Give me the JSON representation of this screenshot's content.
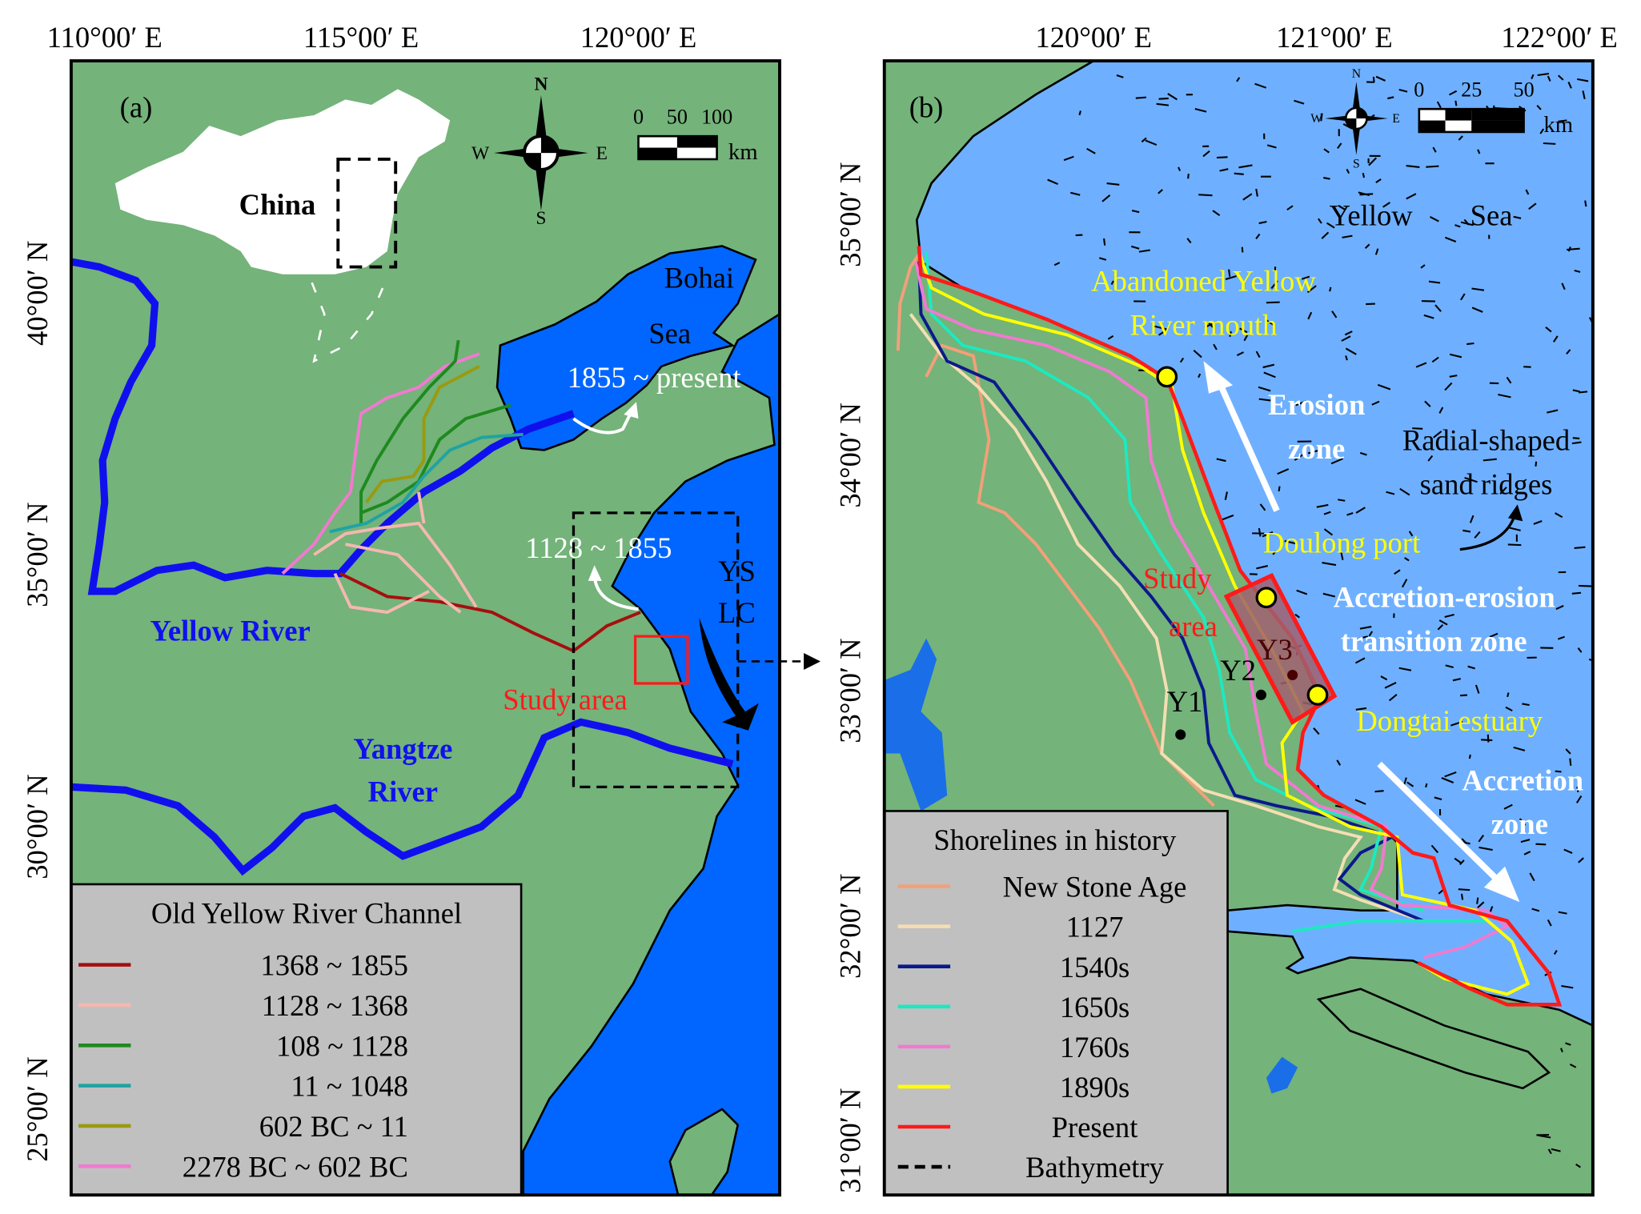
{
  "figure": {
    "top_axis_labels_a": [
      "110°00′ E",
      "115°00′ E",
      "120°00′ E"
    ],
    "top_axis_labels_b": [
      "120°00′ E",
      "121°00′ E",
      "122°00′ E"
    ],
    "left_axis_labels_a": [
      "40°00′ N",
      "35°00′ N",
      "30°00′ N",
      "25°00′ N"
    ],
    "left_axis_labels_b": [
      "35°00′ N",
      "34°00′ N",
      "33°00′ N",
      "32°00′ N",
      "31°00′ N"
    ]
  },
  "panel_a": {
    "label": "(a)",
    "inset_label": "China",
    "compass": {
      "n": "N",
      "s": "S",
      "e": "E",
      "w": "W"
    },
    "scale": {
      "ticks": [
        "0",
        "50",
        "100"
      ],
      "unit": "km"
    },
    "places": {
      "bohai": "Bohai",
      "sea": "Sea",
      "mouth_1855": "1855 ~ present",
      "mouth_1128": "1128 ~ 1855",
      "ys": "YS",
      "lc": "LC",
      "yellow_river": "Yellow River",
      "yangtze_1": "Yangtze",
      "yangtze_2": "River",
      "study_area": "Study  area"
    },
    "legend": {
      "title": "Old Yellow River Channel",
      "items": [
        {
          "label": "1368 ~ 1855",
          "color": "#a50f0f"
        },
        {
          "label": "1128 ~ 1368",
          "color": "#f4b8b0"
        },
        {
          "label": "108 ~ 1128",
          "color": "#1e8a1e"
        },
        {
          "label": "11 ~ 1048",
          "color": "#1fa3a3"
        },
        {
          "label": "602 BC ~ 11",
          "color": "#9a9a10"
        },
        {
          "label": "2278 BC ~ 602 BC",
          "color": "#f07ad0"
        }
      ]
    }
  },
  "panel_b": {
    "label": "(b)",
    "compass": {
      "n": "N",
      "s": "S",
      "e": "E",
      "w": "W"
    },
    "scale": {
      "ticks": [
        "0",
        "25",
        "50"
      ],
      "unit": "km"
    },
    "places": {
      "yellow": "Yellow",
      "sea": "Sea",
      "abandoned_1": "Abandoned Yellow",
      "abandoned_2": "River mouth",
      "erosion_1": "Erosion",
      "erosion_2": "zone",
      "radial_1": "Radial-shaped",
      "radial_2": "sand ridges",
      "doulong": "Doulong port",
      "study_1": "Study",
      "study_2": "area",
      "transition_1": "Accretion-erosion",
      "transition_2": "transition  zone",
      "dongtai": "Dongtai estuary",
      "accretion_1": "Accretion",
      "accretion_2": "zone",
      "y1": "Y1",
      "y2": "Y2",
      "y3": "Y3"
    },
    "legend": {
      "title": "Shorelines  in history",
      "items": [
        {
          "label": "New Stone Age",
          "color": "#f2a07a"
        },
        {
          "label": "1127",
          "color": "#f5deb3"
        },
        {
          "label": "1540s",
          "color": "#0a1a8a"
        },
        {
          "label": "1650s",
          "color": "#1de9c0"
        },
        {
          "label": "1760s",
          "color": "#f07ad0"
        },
        {
          "label": "1890s",
          "color": "#ffff00"
        },
        {
          "label": "Present",
          "color": "#ff1a1a"
        },
        {
          "label": "Bathymetry",
          "color": "#000000"
        }
      ]
    }
  },
  "colors": {
    "land": "#74b37a",
    "sea_a": "#0066ff",
    "sea_b": "#6eb0ff",
    "river": "#1010ee",
    "legend_bg": "#c0c0c0"
  }
}
